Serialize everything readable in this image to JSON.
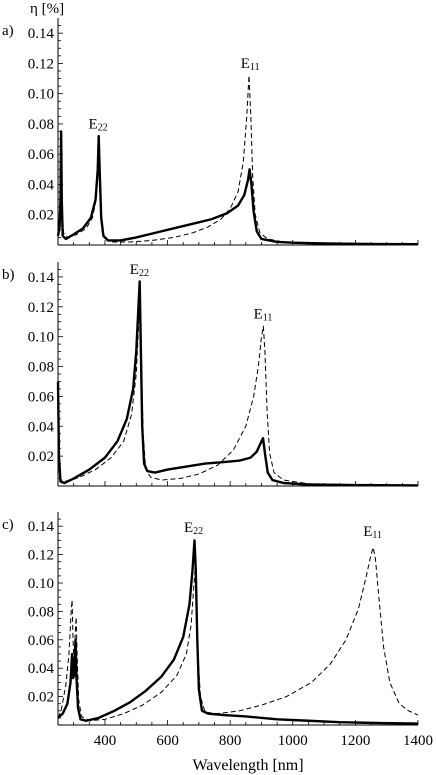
{
  "chart_data": [
    {
      "type": "line",
      "panel_label": "a)",
      "ylabel": "η [%]",
      "xlabel": "",
      "ylim": [
        0,
        0.15
      ],
      "xlim": [
        250,
        1400
      ],
      "y_ticks": [
        "0.02",
        "0.04",
        "0.06",
        "0.08",
        "0.10",
        "0.12",
        "0.14"
      ],
      "x_ticks": [],
      "annotations": [
        {
          "main": "E",
          "sub": "22",
          "x": 378,
          "y": 0.077
        },
        {
          "main": "E",
          "sub": "11",
          "x": 864,
          "y": 0.117
        }
      ],
      "series": [
        {
          "style": "solid",
          "points": [
            [
              250,
              0.006
            ],
            [
              255,
              0.012
            ],
            [
              258,
              0.03
            ],
            [
              260,
              0.075
            ],
            [
              262,
              0.03
            ],
            [
              265,
              0.006
            ],
            [
              275,
              0.004
            ],
            [
              300,
              0.007
            ],
            [
              330,
              0.011
            ],
            [
              355,
              0.018
            ],
            [
              370,
              0.03
            ],
            [
              377,
              0.05
            ],
            [
              380,
              0.072
            ],
            [
              383,
              0.05
            ],
            [
              388,
              0.018
            ],
            [
              395,
              0.006
            ],
            [
              410,
              0.003
            ],
            [
              450,
              0.003
            ],
            [
              500,
              0.005
            ],
            [
              560,
              0.008
            ],
            [
              620,
              0.011
            ],
            [
              680,
              0.014
            ],
            [
              740,
              0.017
            ],
            [
              790,
              0.021
            ],
            [
              825,
              0.026
            ],
            [
              845,
              0.033
            ],
            [
              857,
              0.043
            ],
            [
              862,
              0.05
            ],
            [
              868,
              0.04
            ],
            [
              875,
              0.022
            ],
            [
              885,
              0.009
            ],
            [
              900,
              0.004
            ],
            [
              950,
              0.002
            ],
            [
              1000,
              0.0015
            ],
            [
              1100,
              0.001
            ],
            [
              1200,
              0.0008
            ],
            [
              1300,
              0.0006
            ],
            [
              1400,
              0.0005
            ]
          ]
        },
        {
          "style": "dashed",
          "points": [
            [
              250,
              0.008
            ],
            [
              255,
              0.02
            ],
            [
              260,
              0.07
            ],
            [
              263,
              0.025
            ],
            [
              268,
              0.008
            ],
            [
              280,
              0.005
            ],
            [
              310,
              0.007
            ],
            [
              340,
              0.011
            ],
            [
              360,
              0.018
            ],
            [
              372,
              0.03
            ],
            [
              378,
              0.05
            ],
            [
              381,
              0.068
            ],
            [
              384,
              0.045
            ],
            [
              390,
              0.014
            ],
            [
              398,
              0.005
            ],
            [
              420,
              0.002
            ],
            [
              480,
              0.002
            ],
            [
              550,
              0.003
            ],
            [
              620,
              0.005
            ],
            [
              680,
              0.008
            ],
            [
              730,
              0.012
            ],
            [
              770,
              0.017
            ],
            [
              800,
              0.024
            ],
            [
              825,
              0.035
            ],
            [
              842,
              0.055
            ],
            [
              853,
              0.085
            ],
            [
              860,
              0.112
            ],
            [
              866,
              0.085
            ],
            [
              872,
              0.045
            ],
            [
              880,
              0.02
            ],
            [
              895,
              0.008
            ],
            [
              920,
              0.004
            ],
            [
              970,
              0.002
            ],
            [
              1050,
              0.001
            ],
            [
              1200,
              0.0007
            ],
            [
              1400,
              0.0005
            ]
          ]
        }
      ]
    },
    {
      "type": "line",
      "panel_label": "b)",
      "ylabel": "",
      "xlabel": "",
      "ylim": [
        0,
        0.15
      ],
      "xlim": [
        250,
        1400
      ],
      "y_ticks": [
        "0.02",
        "0.04",
        "0.06",
        "0.08",
        "0.10",
        "0.12",
        "0.14"
      ],
      "x_ticks": [],
      "annotations": [
        {
          "main": "E",
          "sub": "22",
          "x": 510,
          "y": 0.142
        },
        {
          "main": "E",
          "sub": "11",
          "x": 905,
          "y": 0.112
        }
      ],
      "series": [
        {
          "style": "solid",
          "points": [
            [
              250,
              0.07
            ],
            [
              253,
              0.02
            ],
            [
              258,
              0.003
            ],
            [
              270,
              0.002
            ],
            [
              300,
              0.005
            ],
            [
              350,
              0.011
            ],
            [
              400,
              0.019
            ],
            [
              440,
              0.03
            ],
            [
              470,
              0.045
            ],
            [
              490,
              0.065
            ],
            [
              500,
              0.09
            ],
            [
              507,
              0.12
            ],
            [
              511,
              0.137
            ],
            [
              514,
              0.1
            ],
            [
              519,
              0.04
            ],
            [
              525,
              0.015
            ],
            [
              535,
              0.01
            ],
            [
              560,
              0.009
            ],
            [
              600,
              0.011
            ],
            [
              660,
              0.013
            ],
            [
              720,
              0.015
            ],
            [
              780,
              0.016
            ],
            [
              830,
              0.017
            ],
            [
              865,
              0.019
            ],
            [
              885,
              0.023
            ],
            [
              898,
              0.029
            ],
            [
              905,
              0.032
            ],
            [
              911,
              0.022
            ],
            [
              920,
              0.009
            ],
            [
              935,
              0.004
            ],
            [
              970,
              0.002
            ],
            [
              1050,
              0.001
            ],
            [
              1200,
              0.0006
            ],
            [
              1400,
              0.0004
            ]
          ]
        },
        {
          "style": "dashed",
          "points": [
            [
              250,
              0.06
            ],
            [
              254,
              0.015
            ],
            [
              260,
              0.004
            ],
            [
              280,
              0.003
            ],
            [
              320,
              0.006
            ],
            [
              370,
              0.011
            ],
            [
              420,
              0.019
            ],
            [
              460,
              0.03
            ],
            [
              485,
              0.048
            ],
            [
              500,
              0.075
            ],
            [
              508,
              0.11
            ],
            [
              512,
              0.125
            ],
            [
              516,
              0.09
            ],
            [
              522,
              0.035
            ],
            [
              530,
              0.012
            ],
            [
              545,
              0.006
            ],
            [
              580,
              0.004
            ],
            [
              640,
              0.005
            ],
            [
              700,
              0.008
            ],
            [
              760,
              0.014
            ],
            [
              810,
              0.024
            ],
            [
              850,
              0.04
            ],
            [
              875,
              0.06
            ],
            [
              890,
              0.08
            ],
            [
              900,
              0.1
            ],
            [
              906,
              0.107
            ],
            [
              911,
              0.09
            ],
            [
              918,
              0.05
            ],
            [
              926,
              0.022
            ],
            [
              940,
              0.009
            ],
            [
              970,
              0.004
            ],
            [
              1050,
              0.0015
            ],
            [
              1200,
              0.0008
            ],
            [
              1400,
              0.0005
            ]
          ]
        }
      ]
    },
    {
      "type": "line",
      "panel_label": "c)",
      "ylabel": "",
      "xlabel": "Wavelength [nm]",
      "ylim": [
        0,
        0.15
      ],
      "xlim": [
        250,
        1400
      ],
      "y_ticks": [
        "0.02",
        "0.04",
        "0.06",
        "0.08",
        "0.10",
        "0.12",
        "0.14"
      ],
      "x_ticks": [
        "400",
        "600",
        "800",
        "1000",
        "1200",
        "1400"
      ],
      "annotations": [
        {
          "main": "E",
          "sub": "22",
          "x": 683,
          "y": 0.136
        },
        {
          "main": "E",
          "sub": "11",
          "x": 1255,
          "y": 0.133
        }
      ],
      "series": [
        {
          "style": "solid",
          "points": [
            [
              250,
              0.005
            ],
            [
              265,
              0.008
            ],
            [
              280,
              0.015
            ],
            [
              290,
              0.03
            ],
            [
              295,
              0.05
            ],
            [
              298,
              0.033
            ],
            [
              302,
              0.035
            ],
            [
              306,
              0.06
            ],
            [
              309,
              0.034
            ],
            [
              314,
              0.012
            ],
            [
              322,
              0.004
            ],
            [
              340,
              0.003
            ],
            [
              380,
              0.005
            ],
            [
              430,
              0.01
            ],
            [
              480,
              0.016
            ],
            [
              530,
              0.024
            ],
            [
              580,
              0.034
            ],
            [
              620,
              0.046
            ],
            [
              650,
              0.062
            ],
            [
              670,
              0.085
            ],
            [
              680,
              0.11
            ],
            [
              686,
              0.13
            ],
            [
              690,
              0.11
            ],
            [
              695,
              0.06
            ],
            [
              700,
              0.025
            ],
            [
              710,
              0.01
            ],
            [
              730,
              0.008
            ],
            [
              780,
              0.007
            ],
            [
              850,
              0.006
            ],
            [
              950,
              0.004
            ],
            [
              1050,
              0.003
            ],
            [
              1150,
              0.002
            ],
            [
              1250,
              0.0015
            ],
            [
              1400,
              0.001
            ]
          ]
        },
        {
          "style": "dashed",
          "points": [
            [
              250,
              0.005
            ],
            [
              260,
              0.01
            ],
            [
              275,
              0.028
            ],
            [
              285,
              0.05
            ],
            [
              292,
              0.08
            ],
            [
              295,
              0.088
            ],
            [
              298,
              0.06
            ],
            [
              302,
              0.04
            ],
            [
              305,
              0.065
            ],
            [
              308,
              0.076
            ],
            [
              311,
              0.05
            ],
            [
              316,
              0.018
            ],
            [
              325,
              0.006
            ],
            [
              350,
              0.003
            ],
            [
              400,
              0.004
            ],
            [
              460,
              0.008
            ],
            [
              520,
              0.014
            ],
            [
              580,
              0.023
            ],
            [
              630,
              0.035
            ],
            [
              660,
              0.05
            ],
            [
              675,
              0.07
            ],
            [
              683,
              0.095
            ],
            [
              688,
              0.11
            ],
            [
              692,
              0.09
            ],
            [
              697,
              0.05
            ],
            [
              705,
              0.02
            ],
            [
              720,
              0.009
            ],
            [
              760,
              0.008
            ],
            [
              830,
              0.01
            ],
            [
              900,
              0.014
            ],
            [
              980,
              0.02
            ],
            [
              1060,
              0.03
            ],
            [
              1120,
              0.043
            ],
            [
              1170,
              0.06
            ],
            [
              1210,
              0.082
            ],
            [
              1235,
              0.105
            ],
            [
              1250,
              0.12
            ],
            [
              1257,
              0.125
            ],
            [
              1264,
              0.117
            ],
            [
              1275,
              0.09
            ],
            [
              1290,
              0.055
            ],
            [
              1310,
              0.03
            ],
            [
              1340,
              0.015
            ],
            [
              1370,
              0.01
            ],
            [
              1400,
              0.007
            ]
          ]
        }
      ]
    }
  ]
}
